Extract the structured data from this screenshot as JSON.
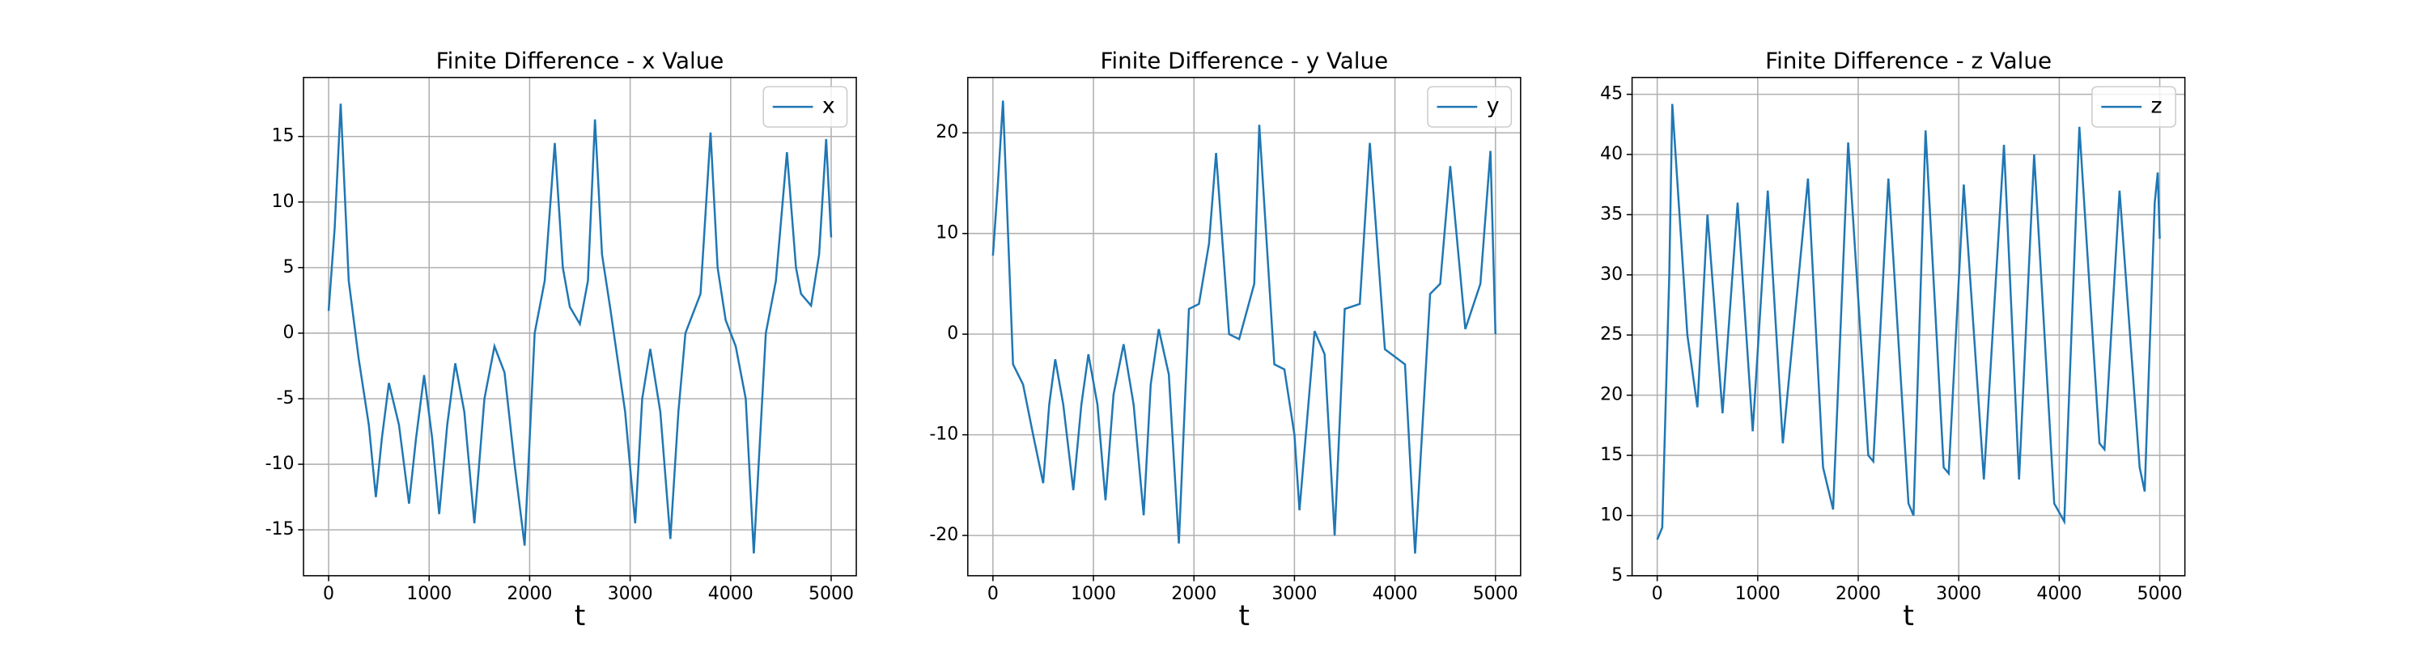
{
  "chart_data": [
    {
      "type": "line",
      "title": "Finite Difference - x Value",
      "xlabel": "t",
      "x": [
        0,
        60,
        120,
        200,
        300,
        400,
        470,
        530,
        600,
        700,
        800,
        870,
        950,
        1030,
        1100,
        1180,
        1260,
        1350,
        1450,
        1550,
        1650,
        1750,
        1850,
        1950,
        2050,
        2150,
        2250,
        2330,
        2400,
        2500,
        2580,
        2650,
        2720,
        2800,
        2950,
        3050,
        3120,
        3200,
        3300,
        3400,
        3480,
        3550,
        3700,
        3800,
        3870,
        3950,
        4050,
        4150,
        4230,
        4350,
        4450,
        4560,
        4650,
        4700,
        4800,
        4880,
        4950,
        5000
      ],
      "series": [
        {
          "name": "x",
          "color": "#1f77b4",
          "values": [
            1.7,
            8,
            17.5,
            4,
            -2,
            -7,
            -12.5,
            -8,
            -3.8,
            -7,
            -13,
            -8,
            -3.2,
            -8,
            -13.8,
            -7,
            -2.3,
            -6,
            -14.5,
            -5,
            -1,
            -3,
            -10,
            -16.2,
            0,
            4,
            14.5,
            5,
            2,
            0.7,
            4,
            16.3,
            6,
            2,
            -6,
            -14.5,
            -5,
            -1.2,
            -6,
            -15.7,
            -6,
            0,
            3,
            15.3,
            5,
            1,
            -1,
            -5,
            -16.8,
            0,
            4,
            13.8,
            5,
            3,
            2.1,
            6,
            14.8,
            7.3
          ]
        }
      ],
      "xlim": [
        -250,
        5250
      ],
      "ylim": [
        -18.5,
        19.5
      ],
      "xticks": [
        0,
        1000,
        2000,
        3000,
        4000,
        5000
      ],
      "yticks": [
        -15,
        -10,
        -5,
        0,
        5,
        10,
        15
      ],
      "grid": true,
      "legend": "upper right"
    },
    {
      "type": "line",
      "title": "Finite Difference - y Value",
      "xlabel": "t",
      "x": [
        0,
        50,
        100,
        200,
        300,
        400,
        500,
        560,
        620,
        700,
        800,
        880,
        950,
        1040,
        1120,
        1200,
        1300,
        1400,
        1500,
        1570,
        1650,
        1750,
        1850,
        1950,
        2050,
        2150,
        2220,
        2350,
        2450,
        2600,
        2650,
        2800,
        2900,
        3000,
        3050,
        3200,
        3300,
        3400,
        3500,
        3650,
        3750,
        3900,
        4100,
        4200,
        4350,
        4450,
        4550,
        4700,
        4850,
        4950,
        5000
      ],
      "series": [
        {
          "name": "y",
          "color": "#1f77b4",
          "values": [
            7.8,
            15,
            23.2,
            -3,
            -5,
            -10,
            -14.8,
            -7,
            -2.5,
            -7,
            -15.5,
            -7,
            -2,
            -7,
            -16.5,
            -6,
            -1,
            -7,
            -18,
            -5,
            0.5,
            -4,
            -20.8,
            2.5,
            3,
            9,
            18,
            0,
            -0.5,
            5,
            20.8,
            -3,
            -3.5,
            -10,
            -17.5,
            0.3,
            -2,
            -20,
            2.5,
            3,
            19,
            -1.5,
            -3,
            -21.8,
            4,
            5,
            16.7,
            0.5,
            5,
            18.2,
            0
          ]
        }
      ],
      "xlim": [
        -250,
        5250
      ],
      "ylim": [
        -24,
        25.5
      ],
      "xticks": [
        0,
        1000,
        2000,
        3000,
        4000,
        5000
      ],
      "yticks": [
        -20,
        -10,
        0,
        10,
        20
      ],
      "grid": true,
      "legend": "upper right"
    },
    {
      "type": "line",
      "title": "Finite Difference - z Value",
      "xlabel": "t",
      "x": [
        0,
        50,
        120,
        150,
        300,
        400,
        500,
        650,
        800,
        950,
        1100,
        1250,
        1500,
        1650,
        1750,
        1900,
        2100,
        2150,
        2300,
        2500,
        2550,
        2670,
        2850,
        2900,
        3050,
        3250,
        3450,
        3600,
        3750,
        3950,
        4050,
        4200,
        4400,
        4450,
        4600,
        4800,
        4850,
        4950,
        4980,
        5000
      ],
      "series": [
        {
          "name": "z",
          "color": "#1f77b4",
          "values": [
            8,
            9,
            30,
            44.2,
            25,
            19,
            35,
            18.5,
            36,
            17,
            37,
            16,
            38,
            14,
            10.5,
            41,
            15,
            14.5,
            38,
            11,
            10,
            42,
            14,
            13.5,
            37.5,
            13,
            40.8,
            13,
            40,
            11,
            9.5,
            42.3,
            16,
            15.5,
            37,
            14,
            12,
            36,
            38.5,
            33
          ]
        }
      ],
      "xlim": [
        -250,
        5250
      ],
      "ylim": [
        5,
        46.4
      ],
      "xticks": [
        0,
        1000,
        2000,
        3000,
        4000,
        5000
      ],
      "yticks": [
        5,
        10,
        15,
        20,
        25,
        30,
        35,
        40,
        45
      ],
      "grid": true,
      "legend": "upper right"
    }
  ]
}
